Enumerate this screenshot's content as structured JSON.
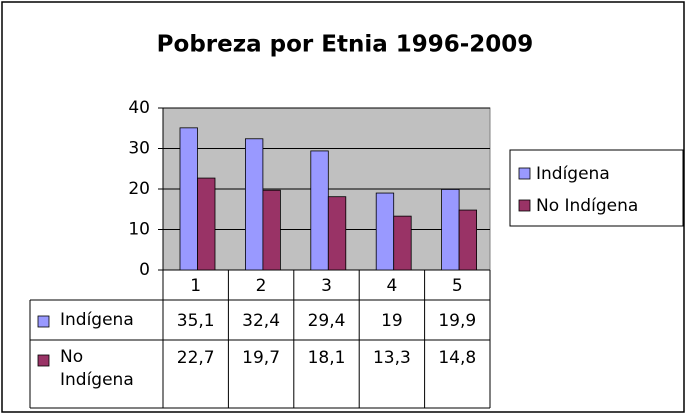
{
  "chart_data": {
    "type": "bar",
    "title": "Pobreza por Etnia 1996-2009",
    "categories": [
      "1",
      "2",
      "3",
      "4",
      "5"
    ],
    "series": [
      {
        "name": "Indígena",
        "color": "#9999ff",
        "values": [
          35.1,
          32.4,
          29.4,
          19,
          19.9
        ],
        "value_labels": [
          "35,1",
          "32,4",
          "29,4",
          "19",
          "19,9"
        ]
      },
      {
        "name": "No Indígena",
        "color": "#993366",
        "values": [
          22.7,
          19.7,
          18.1,
          13.3,
          14.8
        ],
        "value_labels": [
          "22,7",
          "19,7",
          "18,1",
          "13,3",
          "14,8"
        ]
      }
    ],
    "ylim": [
      0,
      40
    ],
    "yticks": [
      0,
      10,
      20,
      30,
      40
    ],
    "grid": true,
    "legend": "right",
    "plot_background": "#c0c0c0"
  }
}
